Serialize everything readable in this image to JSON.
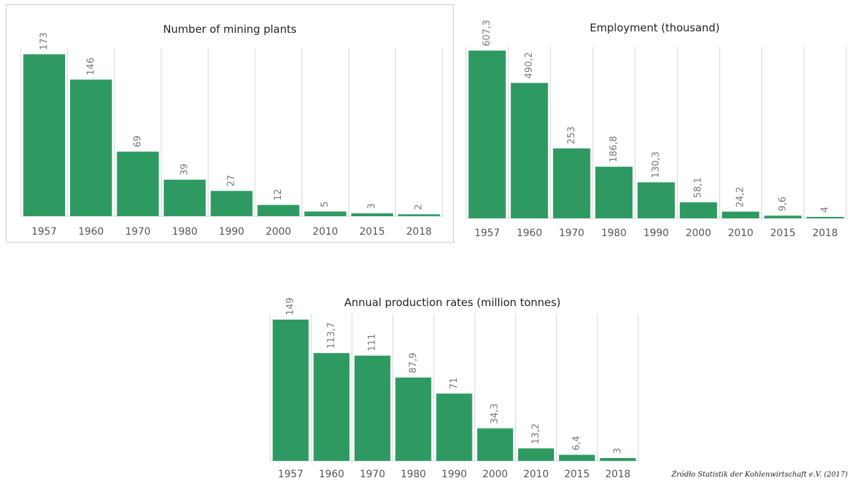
{
  "colors": {
    "bar": "#2e9a62",
    "grid": "#d6d6d6",
    "label": "#777777",
    "tick": "#555555"
  },
  "source_note": "Źródło Statistik der Kohlenwirtschaft e.V. (2017)",
  "chart_data": [
    {
      "type": "bar",
      "title": "Number of mining plants",
      "categories": [
        "1957",
        "1960",
        "1970",
        "1980",
        "1990",
        "2000",
        "2010",
        "2015",
        "2018"
      ],
      "values": [
        173,
        146,
        69,
        39,
        27,
        12,
        5,
        3,
        2
      ],
      "value_labels": [
        "173",
        "146",
        "69",
        "39",
        "27",
        "12",
        "5",
        "3",
        "2"
      ],
      "ylim": [
        0,
        180
      ],
      "grid": "vertical separators",
      "xlabel": "",
      "ylabel": ""
    },
    {
      "type": "bar",
      "title": "Employment (thousand)",
      "categories": [
        "1957",
        "1960",
        "1970",
        "1980",
        "1990",
        "2000",
        "2010",
        "2015",
        "2018"
      ],
      "values": [
        607.3,
        490.2,
        253,
        186.8,
        130.3,
        58.1,
        24.2,
        9.6,
        4
      ],
      "value_labels": [
        "607,3",
        "490,2",
        "253",
        "186,8",
        "130,3",
        "58,1",
        "24,2",
        "9,6",
        "4"
      ],
      "ylim": [
        0,
        620
      ],
      "grid": "vertical separators",
      "xlabel": "",
      "ylabel": ""
    },
    {
      "type": "bar",
      "title": "Annual production rates (million tonnes)",
      "categories": [
        "1957",
        "1960",
        "1970",
        "1980",
        "1990",
        "2000",
        "2010",
        "2015",
        "2018"
      ],
      "values": [
        149,
        113.7,
        111,
        87.9,
        71,
        34.3,
        13.2,
        6.4,
        3
      ],
      "value_labels": [
        "149",
        "113,7",
        "111",
        "87,9",
        "71",
        "34,3",
        "13,2",
        "6,4",
        "3"
      ],
      "ylim": [
        0,
        155
      ],
      "grid": "vertical separators",
      "xlabel": "",
      "ylabel": ""
    }
  ]
}
